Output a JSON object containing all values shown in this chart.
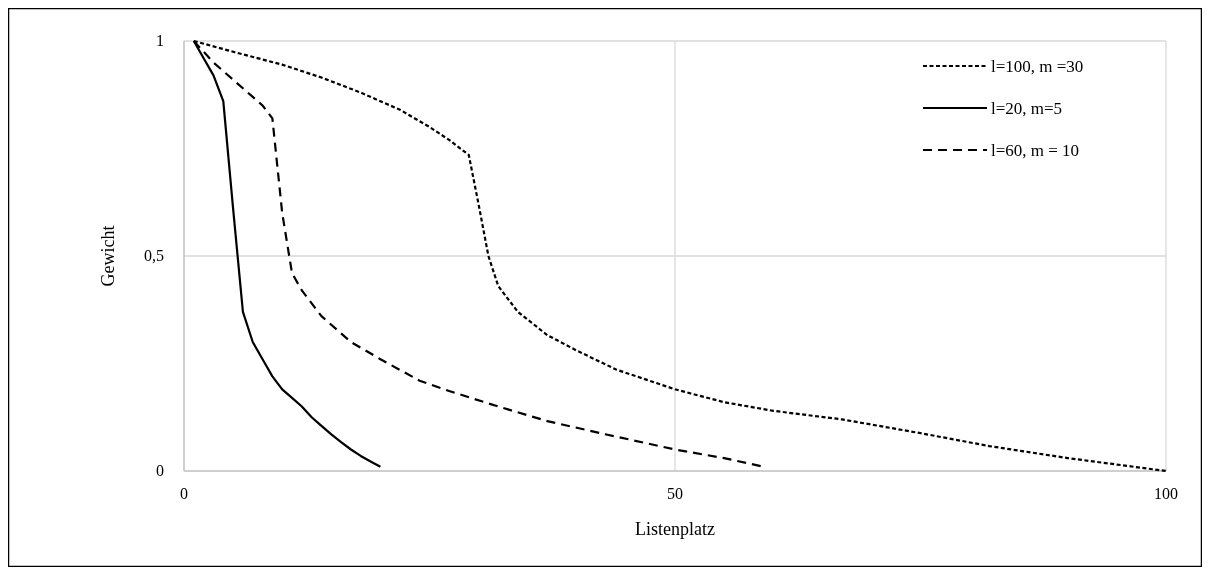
{
  "chart_data": {
    "type": "line",
    "xlabel": "Listenplatz",
    "ylabel": "Gewicht",
    "xlim": [
      0,
      100
    ],
    "ylim": [
      0,
      1
    ],
    "xticks": [
      0,
      50,
      100
    ],
    "yticks": [
      0,
      {
        "value": 0.5,
        "label": "0,5"
      },
      1
    ],
    "grid": true,
    "legend": "top right",
    "marker": "none",
    "series": [
      {
        "name": "l=100, m =30",
        "color": "#000000",
        "line_style": "dotted",
        "x": [
          1,
          5,
          10,
          14,
          18,
          22,
          25,
          27,
          29,
          30,
          31,
          32,
          34,
          37,
          40,
          44,
          50,
          55,
          60,
          67,
          75,
          82,
          90,
          95,
          100
        ],
        "values": [
          1,
          0.975,
          0.945,
          0.915,
          0.88,
          0.84,
          0.8,
          0.77,
          0.735,
          0.62,
          0.5,
          0.43,
          0.37,
          0.316,
          0.28,
          0.236,
          0.19,
          0.16,
          0.14,
          0.12,
          0.088,
          0.058,
          0.03,
          0.015,
          0
        ]
      },
      {
        "name": "l=20, m=5",
        "color": "#000000",
        "line_style": "solid",
        "x": [
          1,
          2,
          3,
          4,
          5,
          6,
          7,
          8,
          9,
          10,
          11,
          12,
          13,
          14,
          15,
          16,
          17,
          18,
          19,
          20
        ],
        "values": [
          1,
          0.96,
          0.92,
          0.86,
          0.61,
          0.37,
          0.3,
          0.26,
          0.22,
          0.19,
          0.17,
          0.15,
          0.125,
          0.105,
          0.085,
          0.067,
          0.05,
          0.035,
          0.022,
          0.01
        ]
      },
      {
        "name": "l=60, m = 10",
        "color": "#000000",
        "line_style": "dashed",
        "x": [
          1,
          3,
          5,
          7,
          8,
          9,
          10,
          11,
          12,
          14,
          17,
          20,
          24,
          27,
          32,
          37,
          43,
          50,
          55,
          59
        ],
        "values": [
          1,
          0.95,
          0.91,
          0.87,
          0.85,
          0.82,
          0.6,
          0.46,
          0.42,
          0.36,
          0.3,
          0.26,
          0.21,
          0.186,
          0.15,
          0.116,
          0.085,
          0.05,
          0.03,
          0.01
        ]
      }
    ]
  }
}
